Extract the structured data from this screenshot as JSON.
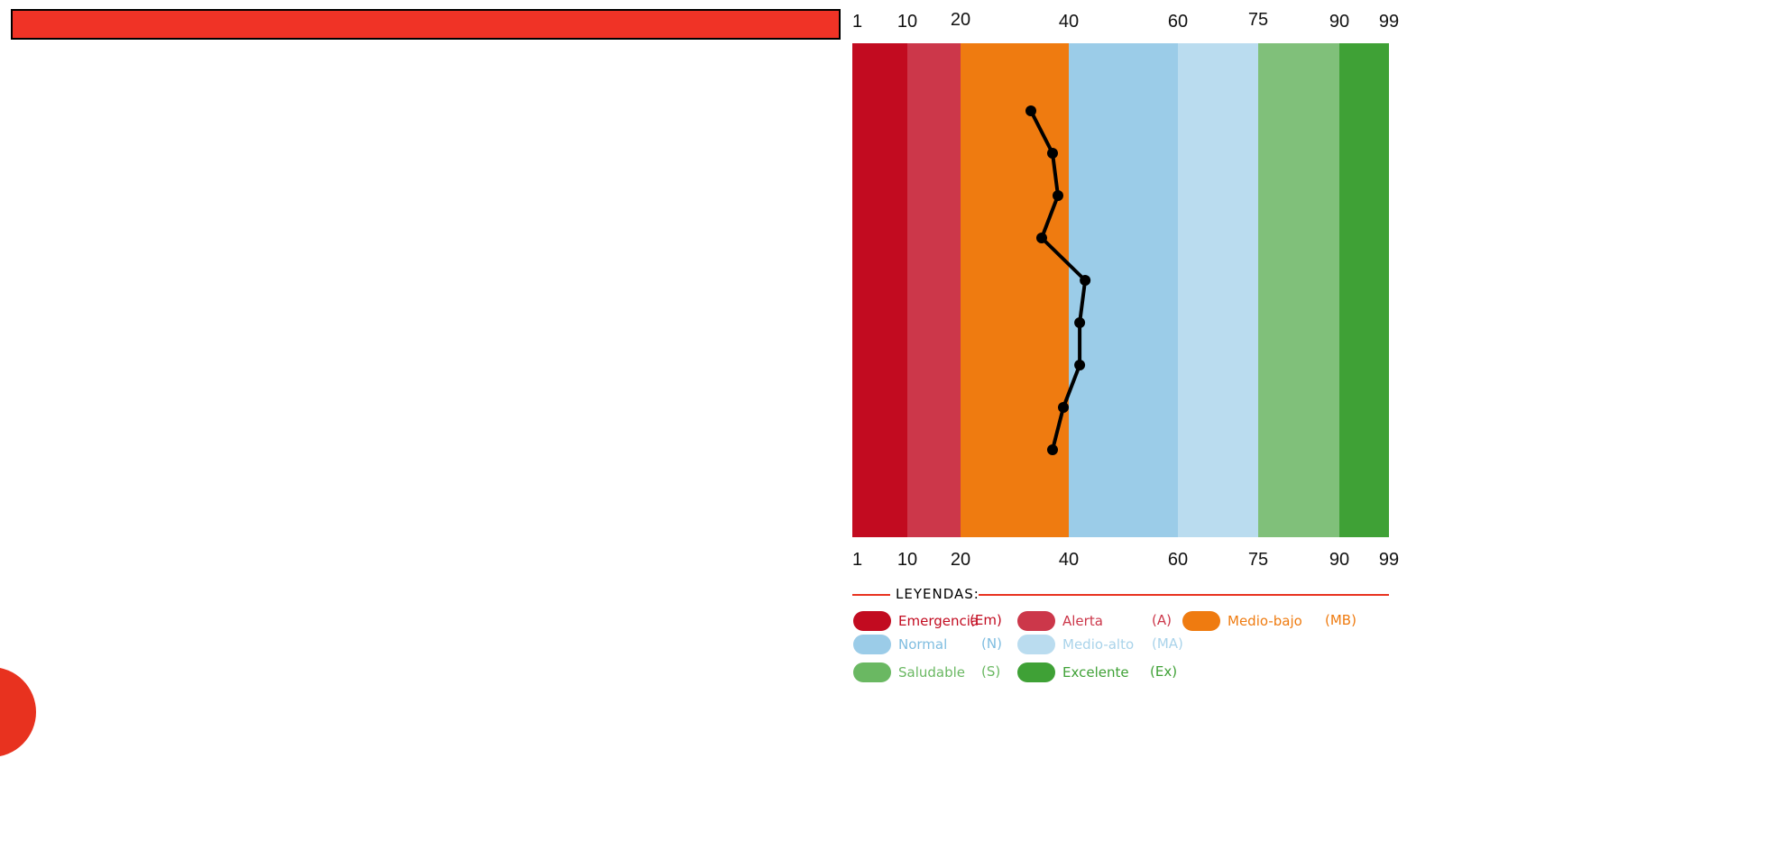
{
  "chart_data": {
    "type": "line",
    "x_ticks": [
      "1",
      "10",
      "20",
      "40",
      "60",
      "75",
      "90",
      "99"
    ],
    "bands": [
      {
        "from": 1,
        "to": 10,
        "color": "#c20b20"
      },
      {
        "from": 10,
        "to": 20,
        "color": "#cc374a"
      },
      {
        "from": 20,
        "to": 40,
        "color": "#ef7b10"
      },
      {
        "from": 40,
        "to": 60,
        "color": "#9bcce8"
      },
      {
        "from": 60,
        "to": 75,
        "color": "#badcef"
      },
      {
        "from": 75,
        "to": 90,
        "color": "#80c07a"
      },
      {
        "from": 90,
        "to": 99,
        "color": "#3fa136"
      }
    ],
    "series": [
      {
        "color": "#000000",
        "values": [
          33,
          37,
          38,
          35,
          43,
          42,
          42,
          39,
          37
        ]
      }
    ],
    "xlim": [
      1,
      99
    ],
    "grid": false
  },
  "legend": {
    "title": "LEYENDAS:",
    "items": [
      {
        "name": "Emergencia",
        "abbr": "(Em)",
        "color": "#c20b20",
        "text_color": "#c20b20"
      },
      {
        "name": "Alerta",
        "abbr": "(A)",
        "color": "#cc374a",
        "text_color": "#cc374a"
      },
      {
        "name": "Medio-bajo",
        "abbr": "(MB)",
        "color": "#ef7b10",
        "text_color": "#ef7b10"
      },
      {
        "name": "Normal",
        "abbr": "(N)",
        "color": "#9bcce8",
        "text_color": "#7fbde0"
      },
      {
        "name": "Medio-alto",
        "abbr": "(MA)",
        "color": "#badcef",
        "text_color": "#a9d3ea"
      },
      {
        "name": "Saludable",
        "abbr": "(S)",
        "color": "#6ab862",
        "text_color": "#6ab862"
      },
      {
        "name": "Excelente",
        "abbr": "(Ex)",
        "color": "#3fa136",
        "text_color": "#3fa136"
      }
    ]
  }
}
